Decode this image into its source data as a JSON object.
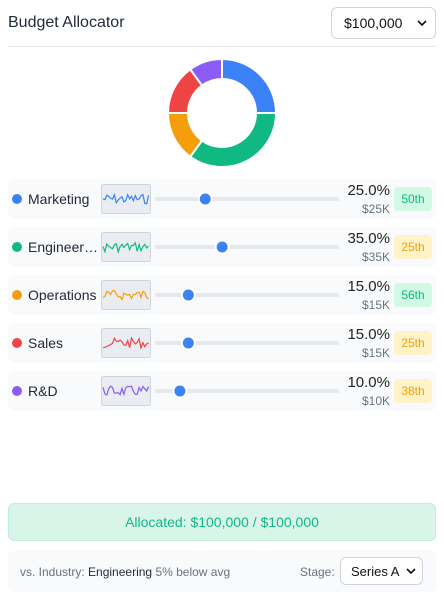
{
  "header": {
    "title": "Budget Allocator",
    "budget": "$100,000"
  },
  "rows": [
    {
      "name": "Marketing",
      "color": "#3b82f6",
      "value": 25,
      "value_label": "25.0%",
      "amount": "$25K",
      "rank": "50th",
      "rank_tone": "good"
    },
    {
      "name": "Engineering",
      "color": "#10b981",
      "value": 35,
      "value_label": "35.0%",
      "amount": "$35K",
      "rank": "25th",
      "rank_tone": "warn"
    },
    {
      "name": "Operations",
      "color": "#f59e0b",
      "value": 15,
      "value_label": "15.0%",
      "amount": "$15K",
      "rank": "56th",
      "rank_tone": "good"
    },
    {
      "name": "Sales",
      "color": "#ef4444",
      "value": 15,
      "value_label": "15.0%",
      "amount": "$15K",
      "rank": "25th",
      "rank_tone": "warn"
    },
    {
      "name": "R&D",
      "color": "#8b5cf6",
      "value": 10,
      "value_label": "10.0%",
      "amount": "$10K",
      "rank": "38th",
      "rank_tone": "warn"
    }
  ],
  "allocated": "Allocated: $100,000 / $100,000",
  "footer": {
    "prefix": "vs. Industry:",
    "industry": "Engineering",
    "delta": "5% below avg",
    "stage_label": "Stage:",
    "stage": "Series A"
  }
}
